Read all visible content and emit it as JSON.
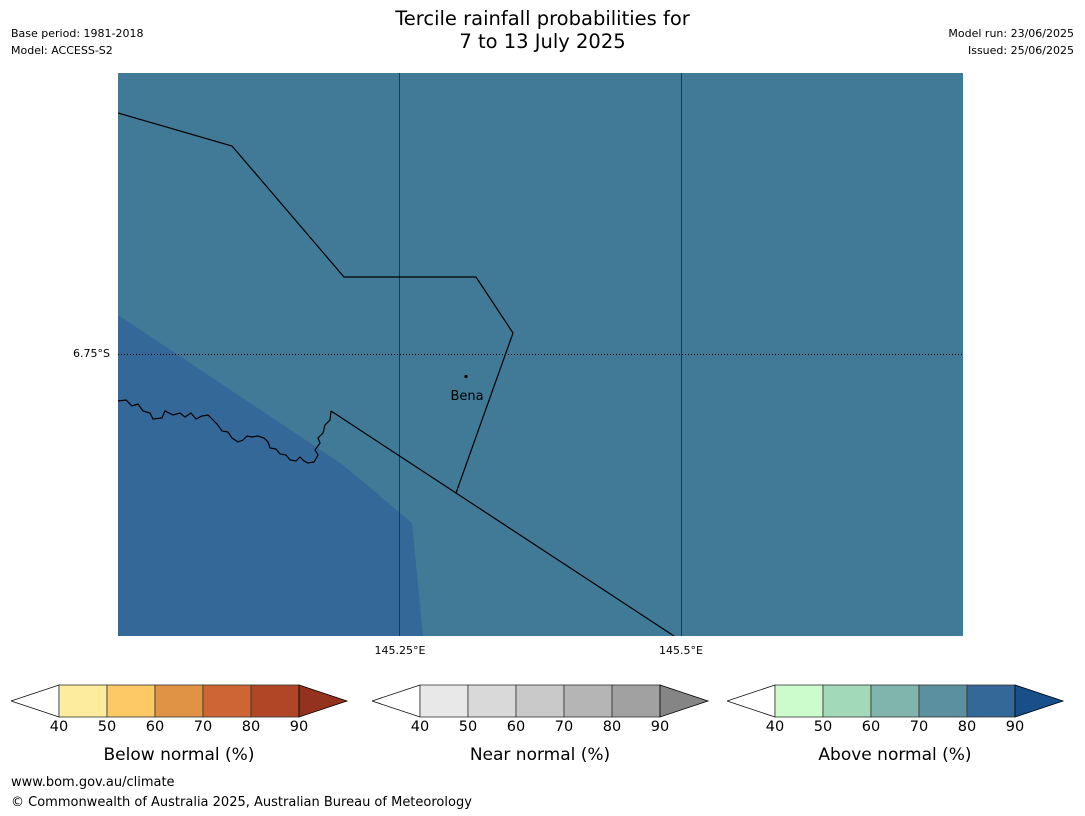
{
  "header": {
    "title_line1": "Tercile rainfall probabilities for",
    "title_line2": "7 to 13 July 2025",
    "base_period": "Base period: 1981-2018",
    "model": "Model: ACCESS-S2",
    "model_run": "Model run: 23/06/2025",
    "issued": "Issued: 25/06/2025"
  },
  "map": {
    "place_name": "Bena",
    "lat_label": "6.75°S",
    "lon_labels": [
      "145.25°E",
      "145.5°E"
    ],
    "fill_colors": {
      "base": "#407a97",
      "above_high": "#336898"
    }
  },
  "colorbars": [
    {
      "label": "Below normal (%)",
      "ticks": [
        "40",
        "50",
        "60",
        "70",
        "80",
        "90"
      ],
      "colors": [
        "#ffffff",
        "#fdec9e",
        "#fdc965",
        "#e19345",
        "#cd6634",
        "#b04626",
        "#93331f"
      ]
    },
    {
      "label": "Near normal (%)",
      "ticks": [
        "40",
        "50",
        "60",
        "70",
        "80",
        "90"
      ],
      "colors": [
        "#ffffff",
        "#e8e8e8",
        "#d9d9d9",
        "#c9c9c9",
        "#b5b5b5",
        "#a1a1a1",
        "#858585"
      ]
    },
    {
      "label": "Above normal (%)",
      "ticks": [
        "40",
        "50",
        "60",
        "70",
        "80",
        "90"
      ],
      "colors": [
        "#ffffff",
        "#ccfccc",
        "#a2d9b8",
        "#80b5ae",
        "#5a90a0",
        "#336898",
        "#184f88"
      ]
    }
  ],
  "footer": {
    "url": "www.bom.gov.au/climate",
    "copyright": "© Commonwealth of Australia 2025, Australian Bureau of Meteorology"
  }
}
